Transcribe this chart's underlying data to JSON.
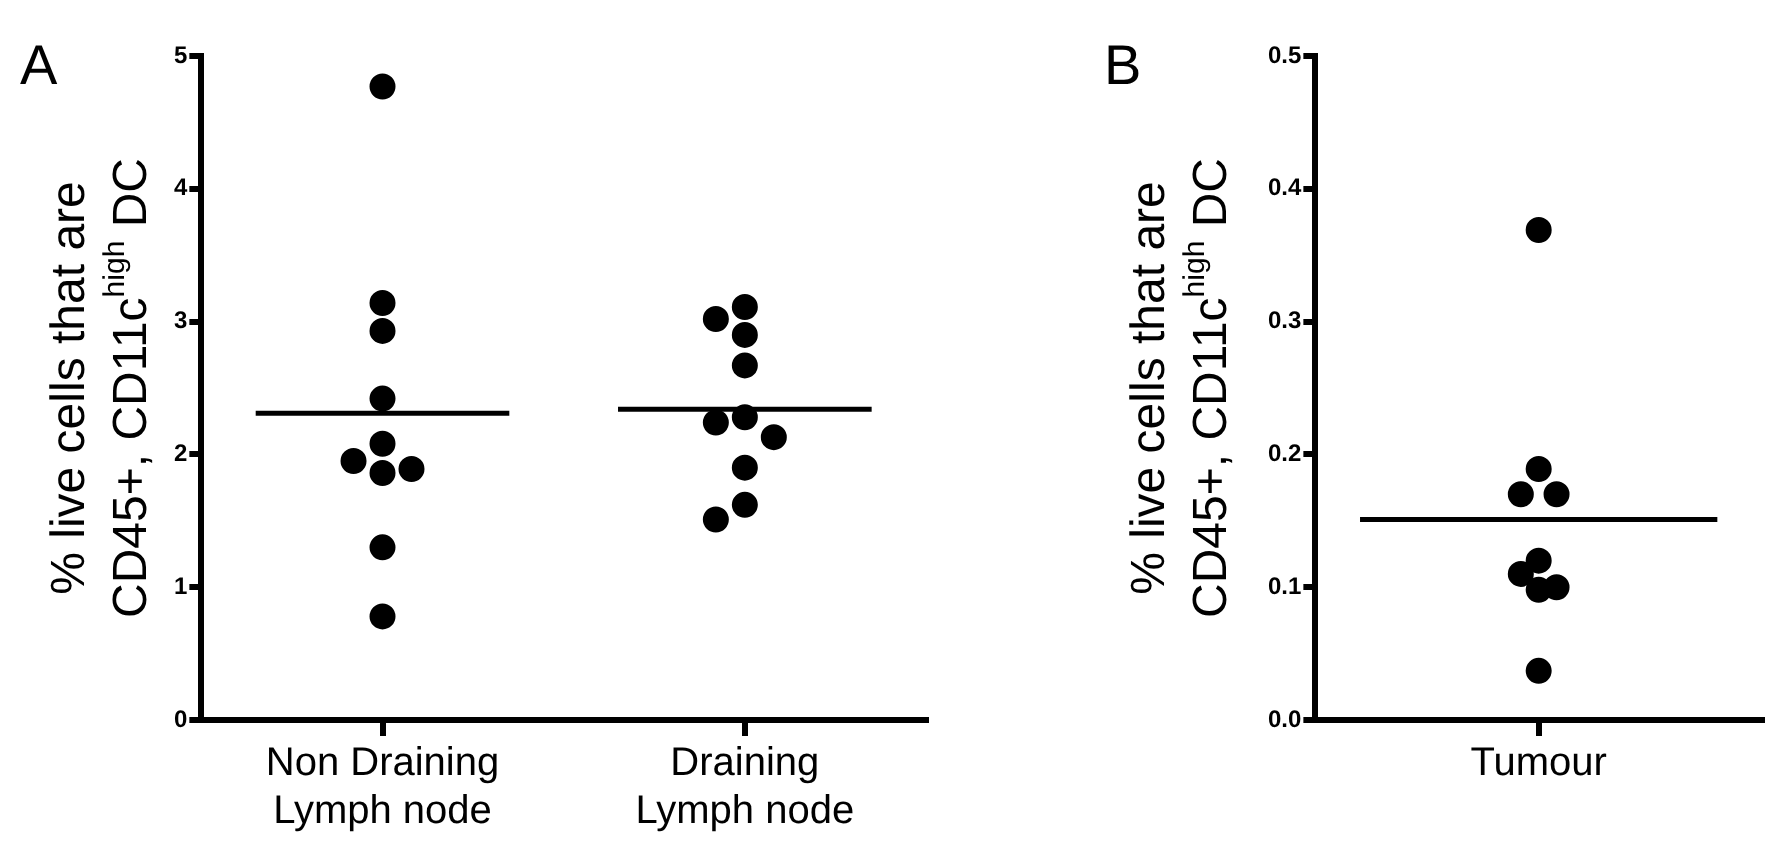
{
  "chart_data": [
    {
      "type": "scatter",
      "title": "A",
      "ylabel": "% live cells that are\nCD45+, CD11c$^{high}$ DC",
      "categories": [
        "Non Draining\nLymph node",
        "Draining\nLymph node"
      ],
      "ylim": [
        0,
        5
      ],
      "yticks": [
        0,
        1,
        2,
        3,
        4,
        5
      ],
      "grid": false,
      "series": [
        {
          "x": [
            "Non Draining\nLymph node",
            "Non Draining\nLymph node",
            "Non Draining\nLymph node",
            "Non Draining\nLymph node",
            "Non Draining\nLymph node",
            "Non Draining\nLymph node",
            "Non Draining\nLymph node",
            "Non Draining\nLymph node",
            "Non Draining\nLymph node",
            "Non Draining\nLymph node",
            "Draining\nLymph node",
            "Draining\nLymph node",
            "Draining\nLymph node",
            "Draining\nLymph node",
            "Draining\nLymph node",
            "Draining\nLymph node",
            "Draining\nLymph node",
            "Draining\nLymph node",
            "Draining\nLymph node",
            "Draining\nLymph node"
          ],
          "values": [
            4.77,
            3.14,
            2.93,
            2.42,
            2.08,
            1.95,
            1.89,
            1.86,
            1.3,
            0.78,
            3.11,
            3.02,
            2.9,
            2.67,
            2.28,
            2.24,
            2.13,
            1.9,
            1.62,
            1.51
          ],
          "color": "#000000",
          "marker": "circle"
        }
      ],
      "ref_lines": [
        {
          "axis": "y",
          "value": 2.31,
          "color": "#000000"
        },
        {
          "axis": "y",
          "value": 2.34,
          "color": "#000000"
        }
      ]
    },
    {
      "type": "scatter",
      "title": "B",
      "ylabel": "% live cells that are\nCD45+, CD11c$^{high}$ DC",
      "categories": [
        "Tumour"
      ],
      "ylim": [
        0,
        0.5
      ],
      "yticks": [
        {
          "value": 0,
          "label": "0.0"
        },
        0.1,
        0.2,
        0.3,
        0.4,
        0.5
      ],
      "grid": false,
      "series": [
        {
          "x": [
            "Tumour",
            "Tumour",
            "Tumour",
            "Tumour",
            "Tumour",
            "Tumour",
            "Tumour",
            "Tumour",
            "Tumour"
          ],
          "values": [
            0.369,
            0.189,
            0.17,
            0.17,
            0.12,
            0.11,
            0.1,
            0.098,
            0.037
          ],
          "color": "#000000",
          "marker": "circle"
        }
      ],
      "ref_lines": [
        {
          "axis": "y",
          "value": 0.151,
          "color": "#000000"
        }
      ]
    }
  ]
}
